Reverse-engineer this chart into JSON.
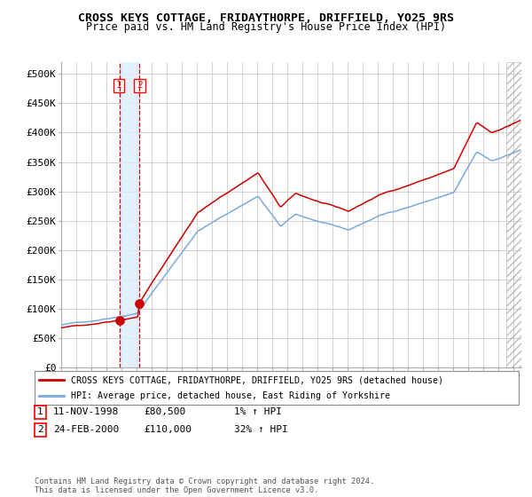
{
  "title": "CROSS KEYS COTTAGE, FRIDAYTHORPE, DRIFFIELD, YO25 9RS",
  "subtitle": "Price paid vs. HM Land Registry's House Price Index (HPI)",
  "ylabel_ticks": [
    "£0",
    "£50K",
    "£100K",
    "£150K",
    "£200K",
    "£250K",
    "£300K",
    "£350K",
    "£400K",
    "£450K",
    "£500K"
  ],
  "ytick_values": [
    0,
    50000,
    100000,
    150000,
    200000,
    250000,
    300000,
    350000,
    400000,
    450000,
    500000
  ],
  "ylim": [
    0,
    520000
  ],
  "xlim_start": 1995.0,
  "xlim_end": 2025.5,
  "sale1_date": 1998.87,
  "sale1_price": 80500,
  "sale2_date": 2000.15,
  "sale2_price": 110000,
  "vline_color": "#cc0000",
  "sale_dot_color": "#cc0000",
  "hpi_line_color": "#7aaadd",
  "price_line_color": "#cc0000",
  "vspan_color": "#ddeeff",
  "legend_entry1": "CROSS KEYS COTTAGE, FRIDAYTHORPE, DRIFFIELD, YO25 9RS (detached house)",
  "legend_entry2": "HPI: Average price, detached house, East Riding of Yorkshire",
  "table_row1": [
    "1",
    "11-NOV-1998",
    "£80,500",
    "1% ↑ HPI"
  ],
  "table_row2": [
    "2",
    "24-FEB-2000",
    "£110,000",
    "32% ↑ HPI"
  ],
  "footer": "Contains HM Land Registry data © Crown copyright and database right 2024.\nThis data is licensed under the Open Government Licence v3.0.",
  "background_color": "#ffffff",
  "grid_color": "#cccccc"
}
